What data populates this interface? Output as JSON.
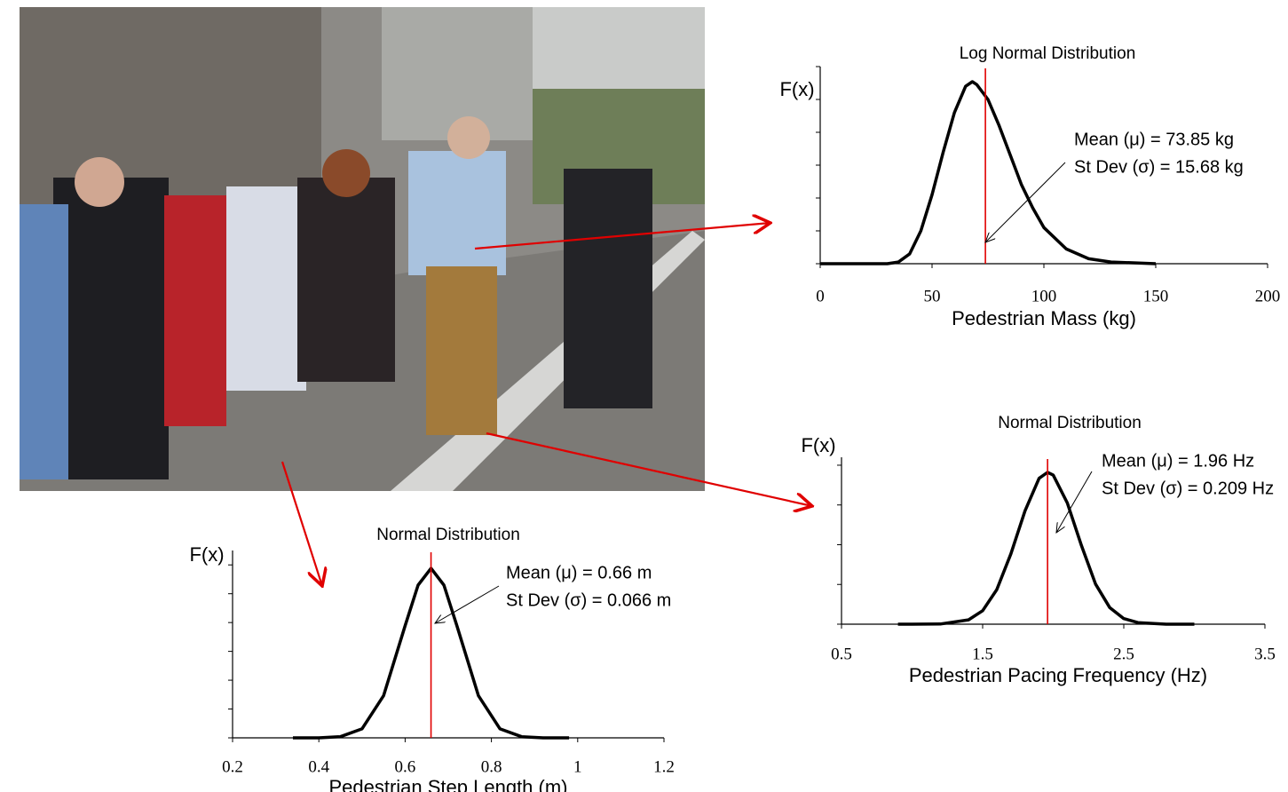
{
  "chart_data": [
    {
      "type": "line",
      "title": "Log Normal  Distribution",
      "ylabel": "F(x)",
      "xlabel": "Pedestrian Mass (kg)",
      "annotations": [
        "Mean (μ) = 73.85 kg",
        "St Dev (σ) = 15.68 kg"
      ],
      "reference_x": 73.85,
      "reference_color": "#e00000",
      "color": "#000000",
      "x": [
        0,
        30,
        35,
        40,
        45,
        50,
        55,
        60,
        65,
        68,
        70,
        75,
        80,
        85,
        90,
        95,
        100,
        110,
        120,
        130,
        150
      ],
      "values": [
        0,
        0,
        0.05,
        0.3,
        1.0,
        2.1,
        3.4,
        4.6,
        5.4,
        5.54,
        5.45,
        5.0,
        4.2,
        3.3,
        2.4,
        1.7,
        1.1,
        0.45,
        0.15,
        0.05,
        0
      ],
      "xlim": [
        0,
        200
      ],
      "xticks": [
        0,
        50,
        100,
        150,
        200
      ],
      "ylim": [
        0,
        6
      ],
      "yticks": [
        0,
        1,
        2,
        3,
        4,
        5,
        6
      ]
    },
    {
      "type": "line",
      "title": "Normal Distribution",
      "ylabel": "F(x)",
      "xlabel": "Pedestrian Pacing Frequency (Hz)",
      "annotations": [
        "Mean (μ) = 1.96 Hz",
        "St Dev (σ) = 0.209 Hz"
      ],
      "reference_x": 1.96,
      "reference_color": "#e00000",
      "color": "#000000",
      "x": [
        0.9,
        1.0,
        1.2,
        1.4,
        1.5,
        1.6,
        1.7,
        1.8,
        1.9,
        1.96,
        2.0,
        2.1,
        2.2,
        2.3,
        2.4,
        2.5,
        2.6,
        2.8,
        3.0
      ],
      "values": [
        0,
        0,
        0.005,
        0.11,
        0.34,
        0.87,
        1.77,
        2.85,
        3.67,
        3.82,
        3.75,
        3.05,
        1.98,
        1.01,
        0.42,
        0.14,
        0.04,
        0,
        0
      ],
      "xlim": [
        0.5,
        3.5
      ],
      "xticks": [
        0.5,
        1.5,
        2.5,
        3.5
      ],
      "ylim": [
        0,
        4.2
      ],
      "yticks": [
        0,
        1,
        2,
        3,
        4
      ]
    },
    {
      "type": "line",
      "title": "Normal Distribution",
      "ylabel": "F(x)",
      "xlabel": "Pedestrian Step Length (m)",
      "annotations": [
        "Mean (μ) = 0.66 m",
        "St Dev (σ) = 0.066 m"
      ],
      "reference_x": 0.66,
      "reference_color": "#e00000",
      "color": "#000000",
      "x": [
        0.34,
        0.4,
        0.45,
        0.5,
        0.55,
        0.6,
        0.63,
        0.66,
        0.69,
        0.72,
        0.77,
        0.82,
        0.87,
        0.92,
        0.98
      ],
      "values": [
        0,
        0,
        0.04,
        0.31,
        1.46,
        3.89,
        5.3,
        5.88,
        5.3,
        3.89,
        1.46,
        0.31,
        0.04,
        0,
        0
      ],
      "xlim": [
        0.2,
        1.2
      ],
      "xticks": [
        0.2,
        0.4,
        0.6,
        0.8,
        1,
        1.2
      ],
      "ylim": [
        0,
        6.5
      ],
      "yticks": [
        0,
        1,
        2,
        3,
        4,
        5,
        6
      ]
    }
  ]
}
